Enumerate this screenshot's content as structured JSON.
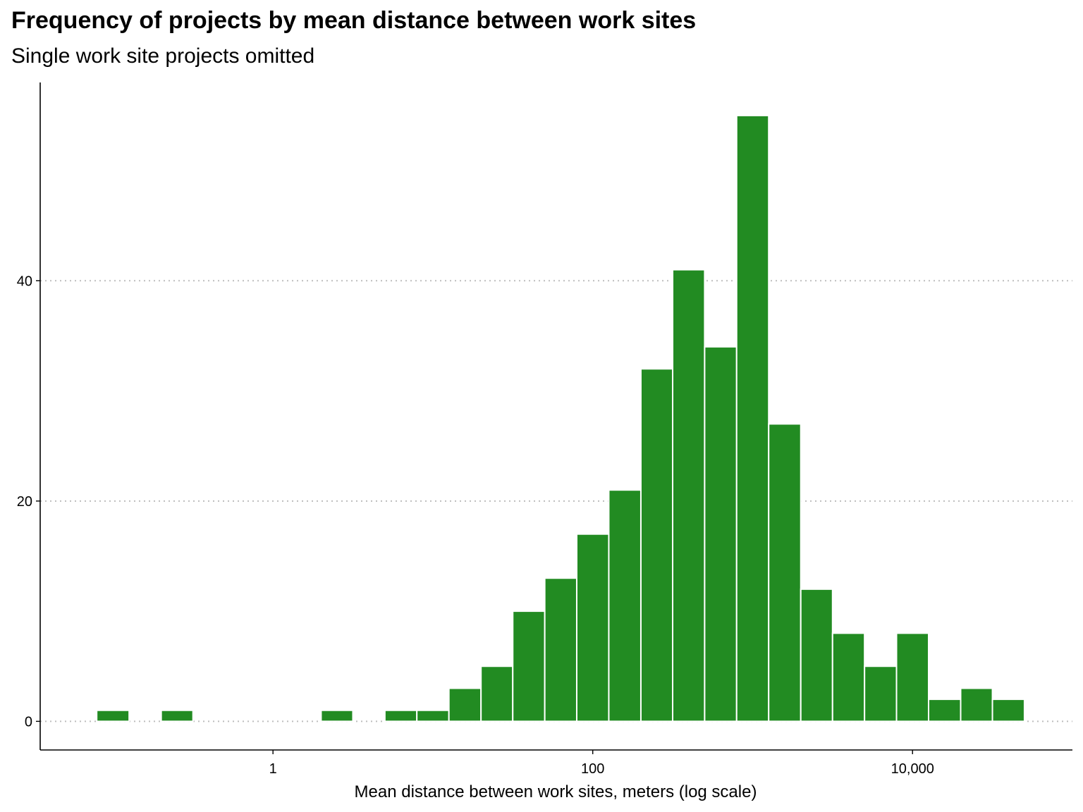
{
  "chart_data": {
    "type": "bar",
    "title": "Frequency of projects by mean distance between work sites",
    "subtitle": "Single work site projects omitted",
    "xlabel": "Mean distance between work sites, meters (log scale)",
    "ylabel": "",
    "x_scale": "log10",
    "xlim": [
      0.035,
      100000
    ],
    "ylim": [
      -2.6,
      58
    ],
    "x_ticks": [
      {
        "value": 1,
        "label": "1"
      },
      {
        "value": 100,
        "label": "100"
      },
      {
        "value": 10000,
        "label": "10,000"
      }
    ],
    "y_ticks": [
      {
        "value": 0,
        "label": "0"
      },
      {
        "value": 20,
        "label": "20"
      },
      {
        "value": 40,
        "label": "40"
      }
    ],
    "grid": {
      "x": false,
      "y": true,
      "style": "dotted"
    },
    "bar_color": "#228B22",
    "bar_edge_color": "#ffffff",
    "bins": [
      {
        "x_min": 0.079,
        "x_max": 0.126,
        "count": 1
      },
      {
        "x_min": 0.126,
        "x_max": 0.2,
        "count": 0
      },
      {
        "x_min": 0.2,
        "x_max": 0.316,
        "count": 1
      },
      {
        "x_min": 0.316,
        "x_max": 0.501,
        "count": 0
      },
      {
        "x_min": 0.501,
        "x_max": 0.794,
        "count": 0
      },
      {
        "x_min": 0.794,
        "x_max": 1.26,
        "count": 0
      },
      {
        "x_min": 1.26,
        "x_max": 2.0,
        "count": 0
      },
      {
        "x_min": 2.0,
        "x_max": 3.16,
        "count": 1
      },
      {
        "x_min": 3.16,
        "x_max": 5.01,
        "count": 0
      },
      {
        "x_min": 5.01,
        "x_max": 7.94,
        "count": 1
      },
      {
        "x_min": 7.94,
        "x_max": 12.6,
        "count": 1
      },
      {
        "x_min": 12.6,
        "x_max": 20.0,
        "count": 3
      },
      {
        "x_min": 20.0,
        "x_max": 31.6,
        "count": 5
      },
      {
        "x_min": 31.6,
        "x_max": 50.1,
        "count": 10
      },
      {
        "x_min": 50.1,
        "x_max": 79.4,
        "count": 13
      },
      {
        "x_min": 79.4,
        "x_max": 126,
        "count": 17
      },
      {
        "x_min": 126,
        "x_max": 200,
        "count": 21
      },
      {
        "x_min": 200,
        "x_max": 316,
        "count": 32
      },
      {
        "x_min": 316,
        "x_max": 501,
        "count": 41
      },
      {
        "x_min": 501,
        "x_max": 794,
        "count": 34
      },
      {
        "x_min": 794,
        "x_max": 1260,
        "count": 55
      },
      {
        "x_min": 1260,
        "x_max": 2000,
        "count": 27
      },
      {
        "x_min": 2000,
        "x_max": 3160,
        "count": 12
      },
      {
        "x_min": 3160,
        "x_max": 5010,
        "count": 8
      },
      {
        "x_min": 5010,
        "x_max": 7940,
        "count": 5
      },
      {
        "x_min": 7940,
        "x_max": 12600,
        "count": 8
      },
      {
        "x_min": 12600,
        "x_max": 20000,
        "count": 2
      },
      {
        "x_min": 20000,
        "x_max": 31600,
        "count": 3
      },
      {
        "x_min": 31600,
        "x_max": 50100,
        "count": 2
      }
    ]
  }
}
